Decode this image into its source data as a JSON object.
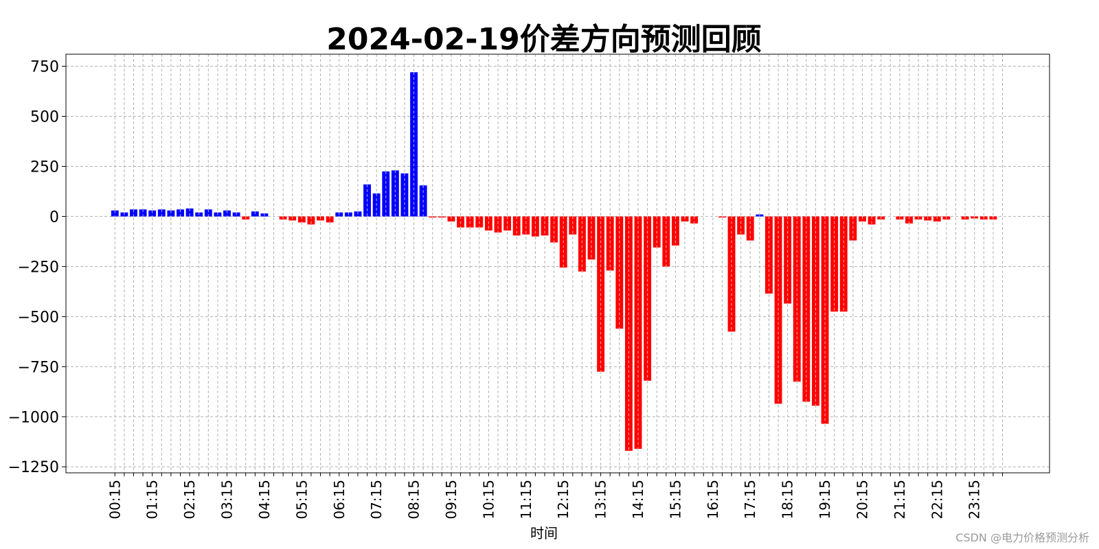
{
  "chart_data": {
    "type": "bar",
    "title": "2024-02-19价差方向预测回顾",
    "xlabel": "时间",
    "ylabel": "",
    "ylim": [
      -1280,
      810
    ],
    "yticks": [
      750,
      500,
      250,
      0,
      -250,
      -500,
      -750,
      -1000,
      -1250
    ],
    "ytick_labels": [
      "750",
      "500",
      "250",
      "0",
      "−250",
      "−500",
      "−750",
      "−1000",
      "−1250"
    ],
    "positive_color": "#0000ff",
    "negative_color": "#ff0000",
    "grid": true,
    "tick_every": 4,
    "categories": [
      "00:15",
      "00:30",
      "00:45",
      "01:00",
      "01:15",
      "01:30",
      "01:45",
      "02:00",
      "02:15",
      "02:30",
      "02:45",
      "03:00",
      "03:15",
      "03:30",
      "03:45",
      "04:00",
      "04:15",
      "04:30",
      "04:45",
      "05:00",
      "05:15",
      "05:30",
      "05:45",
      "06:00",
      "06:15",
      "06:30",
      "06:45",
      "07:00",
      "07:15",
      "07:30",
      "07:45",
      "08:00",
      "08:15",
      "08:30",
      "08:45",
      "09:00",
      "09:15",
      "09:30",
      "09:45",
      "10:00",
      "10:15",
      "10:30",
      "10:45",
      "11:00",
      "11:15",
      "11:30",
      "11:45",
      "12:00",
      "12:15",
      "12:30",
      "12:45",
      "13:00",
      "13:15",
      "13:30",
      "13:45",
      "14:00",
      "14:15",
      "14:30",
      "14:45",
      "15:00",
      "15:15",
      "15:30",
      "15:45",
      "16:00",
      "16:15",
      "16:30",
      "16:45",
      "17:00",
      "17:15",
      "17:30",
      "17:45",
      "18:00",
      "18:15",
      "18:30",
      "18:45",
      "19:00",
      "19:15",
      "19:30",
      "19:45",
      "20:00",
      "20:15",
      "20:30",
      "20:45",
      "21:00",
      "21:15",
      "21:30",
      "21:45",
      "22:00",
      "22:15",
      "22:30",
      "22:45",
      "23:00",
      "23:15",
      "23:30",
      "23:45",
      "24:00"
    ],
    "values": [
      30,
      20,
      35,
      35,
      30,
      35,
      30,
      35,
      40,
      20,
      35,
      20,
      30,
      20,
      -15,
      25,
      15,
      0,
      -15,
      -20,
      -30,
      -40,
      -20,
      -30,
      20,
      20,
      25,
      160,
      115,
      225,
      230,
      215,
      720,
      155,
      -5,
      -5,
      -25,
      -55,
      -55,
      -55,
      -70,
      -80,
      -70,
      -95,
      -90,
      -100,
      -95,
      -130,
      -255,
      -90,
      -275,
      -215,
      -775,
      -270,
      -560,
      -1170,
      -1160,
      -820,
      -155,
      -250,
      -145,
      -25,
      -35,
      0,
      0,
      -5,
      -575,
      -90,
      -120,
      10,
      -385,
      -935,
      -435,
      -825,
      -925,
      -945,
      -1035,
      -475,
      -475,
      -120,
      -25,
      -40,
      -15,
      0,
      -15,
      -35,
      -15,
      -20,
      -25,
      -15,
      0,
      -15,
      -10,
      -15,
      -15,
      0
    ]
  },
  "watermark": "CSDN @电力价格预测分析"
}
